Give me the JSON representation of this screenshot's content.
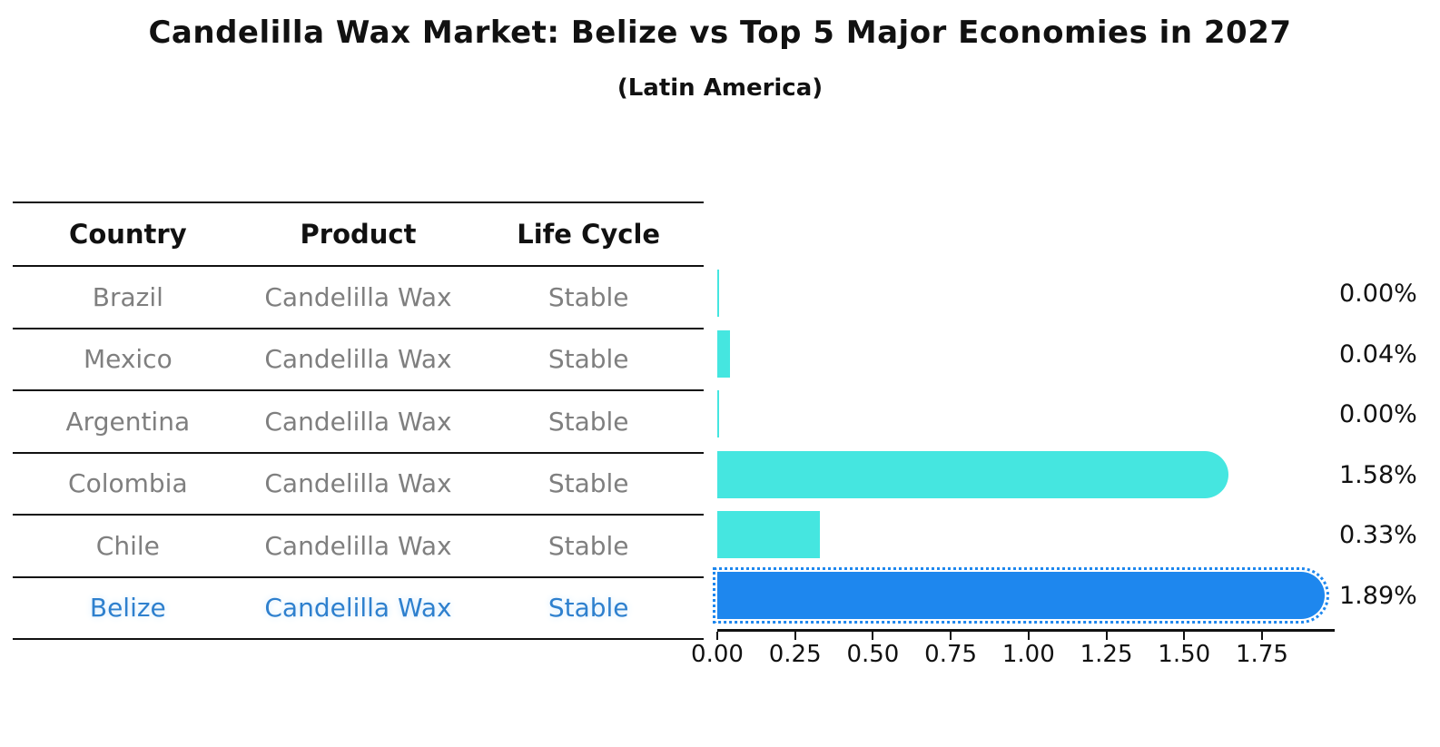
{
  "title": "Candelilla Wax Market: Belize vs Top 5 Major Economies in 2027",
  "subtitle": "(Latin America)",
  "table": {
    "headers": [
      "Country",
      "Product",
      "Life Cycle"
    ],
    "rows": [
      {
        "country": "Brazil",
        "product": "Candelilla Wax",
        "life_cycle": "Stable",
        "highlighted": false
      },
      {
        "country": "Mexico",
        "product": "Candelilla Wax",
        "life_cycle": "Stable",
        "highlighted": false
      },
      {
        "country": "Argentina",
        "product": "Candelilla Wax",
        "life_cycle": "Stable",
        "highlighted": false
      },
      {
        "country": "Colombia",
        "product": "Candelilla Wax",
        "life_cycle": "Stable",
        "highlighted": false
      },
      {
        "country": "Chile",
        "product": "Candelilla Wax",
        "life_cycle": "Stable",
        "highlighted": false
      },
      {
        "country": "Belize",
        "product": "Candelilla Wax",
        "life_cycle": "Stable",
        "highlighted": true
      }
    ]
  },
  "chart_data": {
    "type": "bar",
    "orientation": "horizontal",
    "title": "Candelilla Wax Market: Belize vs Top 5 Major Economies in 2027",
    "subtitle": "(Latin America)",
    "categories": [
      "Brazil",
      "Mexico",
      "Argentina",
      "Colombia",
      "Chile",
      "Belize"
    ],
    "values": [
      0.0,
      0.04,
      0.0,
      1.58,
      0.33,
      1.89
    ],
    "value_labels": [
      "0.00%",
      "0.04%",
      "0.00%",
      "1.58%",
      "0.33%",
      "1.89%"
    ],
    "x_ticks": [
      "0.00",
      "0.25",
      "0.50",
      "0.75",
      "1.00",
      "1.25",
      "1.50",
      "1.75"
    ],
    "xlim": [
      0,
      1.98
    ],
    "grid": false,
    "legend": "none",
    "bar_color": "#45E6E0",
    "highlight_color": "#1E87EE",
    "highlight_text_color": "#2E80CE",
    "highlight_index": 5
  }
}
